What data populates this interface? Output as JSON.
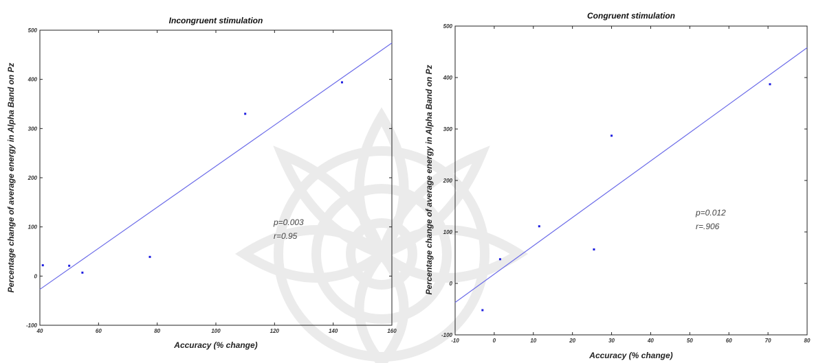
{
  "chart_data": [
    {
      "type": "scatter",
      "title": "Incongruent stimulation",
      "xlabel": "Accuracy (% change)",
      "ylabel": "Percentage change of  average energy in Alpha Band on Pz",
      "xlim": [
        40,
        160
      ],
      "ylim": [
        -100,
        500
      ],
      "xticks": [
        40,
        60,
        80,
        100,
        120,
        140,
        160
      ],
      "yticks": [
        -100,
        0,
        100,
        200,
        300,
        400,
        500
      ],
      "grid": false,
      "points": [
        {
          "x": 41,
          "y": 22
        },
        {
          "x": 50,
          "y": 21
        },
        {
          "x": 54.5,
          "y": 7
        },
        {
          "x": 77.5,
          "y": 39
        },
        {
          "x": 110,
          "y": 330
        },
        {
          "x": 143,
          "y": 394
        }
      ],
      "fit_line": {
        "x": [
          40,
          160
        ],
        "y": [
          -27,
          474
        ]
      },
      "annotations": [
        "p=0.003",
        "r=0.95"
      ],
      "point_color": "#1f1fe0",
      "line_color": "#6a6ae8"
    },
    {
      "type": "scatter",
      "title": "Congruent stimulation",
      "xlabel": "Accuracy (% change)",
      "ylabel": "Percentage change of  average energy in Alpha Band on Pz",
      "xlim": [
        -10,
        80
      ],
      "ylim": [
        -100,
        500
      ],
      "xticks": [
        -10,
        0,
        10,
        20,
        30,
        40,
        50,
        60,
        70,
        80
      ],
      "yticks": [
        -100,
        0,
        100,
        200,
        300,
        400,
        500
      ],
      "grid": false,
      "points": [
        {
          "x": -3,
          "y": -52
        },
        {
          "x": 1.5,
          "y": 47
        },
        {
          "x": 11.5,
          "y": 111
        },
        {
          "x": 25.5,
          "y": 66
        },
        {
          "x": 30,
          "y": 287
        },
        {
          "x": 70.5,
          "y": 387
        }
      ],
      "fit_line": {
        "x": [
          -10,
          80
        ],
        "y": [
          -37,
          458
        ]
      },
      "annotations": [
        "p=0.012",
        "r=.906"
      ],
      "point_color": "#1f1fe0",
      "line_color": "#6a6ae8"
    }
  ]
}
